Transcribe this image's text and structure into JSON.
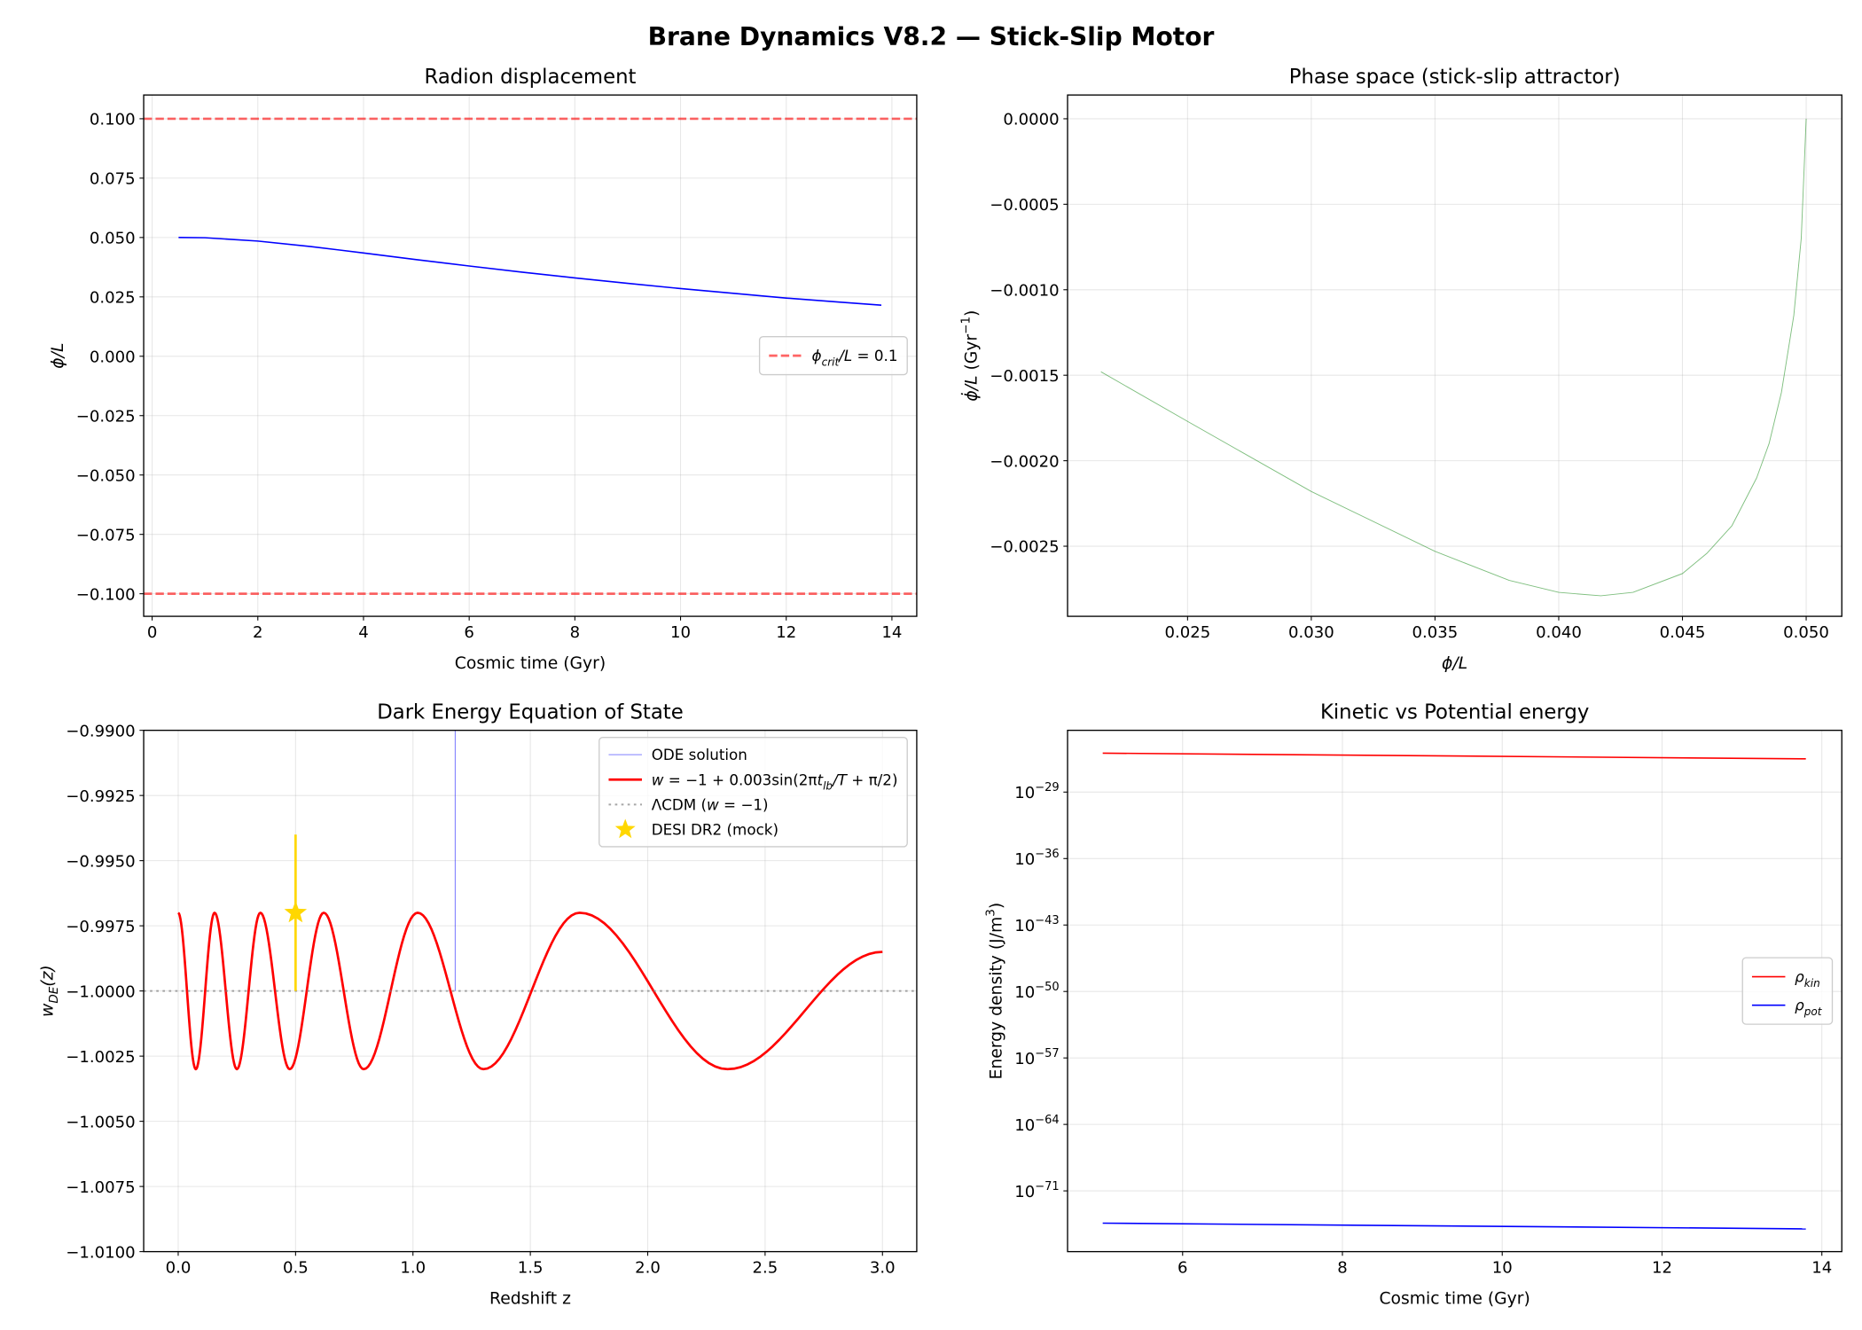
{
  "figure": {
    "title": "Brane Dynamics V8.2 — Stick-Slip Motor"
  },
  "chart_data": [
    {
      "type": "line",
      "title": "Radion displacement",
      "xlabel": [
        {
          "t": "Cosmic time (Gyr)"
        }
      ],
      "ylabel": [
        {
          "t": "ϕ/L",
          "i": 1
        }
      ],
      "xlim": [
        -0.16,
        14.47
      ],
      "ylim": [
        -0.1095,
        0.11
      ],
      "xticks": [
        0,
        2,
        4,
        6,
        8,
        10,
        12,
        14
      ],
      "xticklabels": [
        "0",
        "2",
        "4",
        "6",
        "8",
        "10",
        "12",
        "14"
      ],
      "yticks": [
        0.1,
        0.075,
        0.05,
        0.025,
        0,
        -0.025,
        -0.05,
        -0.075,
        -0.1
      ],
      "yticklabels": [
        "0.100",
        "0.075",
        "0.050",
        "0.025",
        "0.000",
        "−0.025",
        "−0.050",
        "−0.075",
        "−0.100"
      ],
      "grid": true,
      "legend": "center right",
      "series": [
        {
          "kind": "hline",
          "y": [
            0.1,
            -0.1
          ],
          "color": "#ff0000",
          "alpha": 0.6,
          "style": "dashed",
          "width": 2,
          "name": [
            {
              "t": "ϕ",
              "i": 1
            },
            {
              "t": "crit",
              "i": 1,
              "sub": 1
            },
            {
              "t": "/L",
              "i": 1
            },
            {
              "t": " = 0.1"
            }
          ]
        },
        {
          "kind": "line",
          "color": "#0000ff",
          "width": 1.2,
          "x": [
            0.5,
            1,
            2,
            3,
            4,
            5,
            6,
            7,
            8,
            9,
            10,
            11,
            12,
            13,
            13.8
          ],
          "y": [
            0.05,
            0.0499,
            0.0485,
            0.0462,
            0.0435,
            0.0407,
            0.038,
            0.0354,
            0.033,
            0.0307,
            0.0285,
            0.0265,
            0.0245,
            0.0228,
            0.0215
          ]
        }
      ]
    },
    {
      "type": "line",
      "title": "Phase space (stick-slip attractor)",
      "xlabel": [
        {
          "t": "ϕ/L",
          "i": 1
        }
      ],
      "ylabel": [
        {
          "t": "ϕ̇/L",
          "i": 1
        },
        {
          "t": " (Gyr"
        },
        {
          "t": "−1",
          "sup": 1
        },
        {
          "t": ")"
        }
      ],
      "xlim": [
        0.02015,
        0.05144
      ],
      "ylim": [
        -0.00291,
        0.000139
      ],
      "xticks": [
        0.025,
        0.03,
        0.035,
        0.04,
        0.045,
        0.05
      ],
      "xticklabels": [
        "0.025",
        "0.030",
        "0.035",
        "0.040",
        "0.045",
        "0.050"
      ],
      "yticks": [
        0,
        -0.0005,
        -0.001,
        -0.0015,
        -0.002,
        -0.0025
      ],
      "yticklabels": [
        "0.0000",
        "−0.0005",
        "−0.0010",
        "−0.0015",
        "−0.0020",
        "−0.0025"
      ],
      "grid": true,
      "series": [
        {
          "kind": "line",
          "color": "#008000",
          "alpha": 0.5,
          "width": 0.7,
          "x": [
            0.0215,
            0.025,
            0.03,
            0.035,
            0.038,
            0.04,
            0.0417,
            0.043,
            0.045,
            0.046,
            0.047,
            0.048,
            0.0485,
            0.049,
            0.0495,
            0.0498,
            0.05
          ],
          "y": [
            -0.00148,
            -0.00177,
            -0.00218,
            -0.00253,
            -0.0027,
            -0.00277,
            -0.00279,
            -0.00277,
            -0.00266,
            -0.00254,
            -0.00238,
            -0.0021,
            -0.0019,
            -0.0016,
            -0.00115,
            -0.0007,
            0
          ]
        }
      ]
    },
    {
      "type": "line",
      "title": "Dark Energy Equation of State",
      "xlabel": [
        {
          "t": "Redshift z"
        }
      ],
      "ylabel": [
        {
          "t": "w",
          "i": 1
        },
        {
          "t": "DE",
          "i": 1,
          "sub": 1
        },
        {
          "t": "(z)",
          "i": 1
        }
      ],
      "xlim": [
        -0.147,
        3.146
      ],
      "ylim": [
        -1.01,
        -0.99
      ],
      "xticks": [
        0,
        0.5,
        1,
        1.5,
        2,
        2.5,
        3
      ],
      "xticklabels": [
        "0.0",
        "0.5",
        "1.0",
        "1.5",
        "2.0",
        "2.5",
        "3.0"
      ],
      "yticks": [
        -0.99,
        -0.9925,
        -0.995,
        -0.9975,
        -1.0,
        -1.0025,
        -1.005,
        -1.0075,
        -1.01
      ],
      "yticklabels": [
        "−0.9900",
        "−0.9925",
        "−0.9950",
        "−0.9975",
        "−1.0000",
        "−1.0025",
        "−1.0050",
        "−1.0075",
        "−1.0100"
      ],
      "grid": true,
      "legend": "upper right",
      "series": [
        {
          "kind": "line",
          "color": "#0000ff",
          "alpha": 0.5,
          "width": 0.8,
          "name": [
            {
              "t": "ODE solution"
            }
          ],
          "x": [
            1.18,
            1.18
          ],
          "y": [
            -1.0,
            -0.985
          ]
        },
        {
          "kind": "sinusoid",
          "color": "#ff0000",
          "width": 2,
          "name": [
            {
              "t": "w",
              "i": 1
            },
            {
              "t": " = −1 + 0.003sin(2π"
            },
            {
              "t": "t",
              "i": 1
            },
            {
              "t": "lb",
              "i": 1,
              "sub": 1
            },
            {
              "t": "/",
              "i": 1
            },
            {
              "t": "T",
              "i": 1
            },
            {
              "t": " + π/2)"
            }
          ],
          "x": [
            0,
            0.075,
            0.155,
            0.25,
            0.35,
            0.475,
            0.62,
            0.79,
            1.02,
            1.3,
            1.71,
            2.34,
            3.0
          ],
          "y": [
            -0.997,
            -1.003,
            -0.997,
            -1.003,
            -0.997,
            -1.003,
            -0.997,
            -1.003,
            -0.997,
            -1.003,
            -0.997,
            -1.003,
            -0.9985
          ]
        },
        {
          "kind": "hline",
          "y": [
            -1.0
          ],
          "color": "#808080",
          "alpha": 0.7,
          "style": "dotted",
          "width": 1.5,
          "name": [
            {
              "t": "ΛCDM ("
            },
            {
              "t": "w",
              "i": 1
            },
            {
              "t": " = −1)"
            }
          ]
        },
        {
          "kind": "errorstar",
          "color": "#ffd700",
          "x": [
            0.5
          ],
          "y": [
            -0.997
          ],
          "yerr": [
            0.003
          ],
          "name": [
            {
              "t": "DESI DR2 (mock)"
            }
          ]
        }
      ]
    },
    {
      "type": "line",
      "title": "Kinetic vs Potential energy",
      "xlabel": [
        {
          "t": "Cosmic time (Gyr)"
        }
      ],
      "ylabel": [
        {
          "t": "Energy density (J/m"
        },
        {
          "t": "3",
          "sup": 1
        },
        {
          "t": ")"
        }
      ],
      "xlim": [
        4.56,
        14.25
      ],
      "yscale": "log",
      "ylim": [
        4e-78,
        3.2e-23
      ],
      "xticks": [
        6,
        8,
        10,
        12,
        14
      ],
      "xticklabels": [
        "6",
        "8",
        "10",
        "12",
        "14"
      ],
      "yticks": [
        1e-29,
        1e-36,
        1e-43,
        1e-50,
        1e-57,
        1e-64,
        1e-71
      ],
      "yticklabels": [
        [
          {
            "t": "10"
          },
          {
            "t": "−29",
            "sup": 1
          }
        ],
        [
          {
            "t": "10"
          },
          {
            "t": "−36",
            "sup": 1
          }
        ],
        [
          {
            "t": "10"
          },
          {
            "t": "−43",
            "sup": 1
          }
        ],
        [
          {
            "t": "10"
          },
          {
            "t": "−50",
            "sup": 1
          }
        ],
        [
          {
            "t": "10"
          },
          {
            "t": "−57",
            "sup": 1
          }
        ],
        [
          {
            "t": "10"
          },
          {
            "t": "−64",
            "sup": 1
          }
        ],
        [
          {
            "t": "10"
          },
          {
            "t": "−71",
            "sup": 1
          }
        ]
      ],
      "grid": true,
      "legend": "center right",
      "series": [
        {
          "kind": "line",
          "color": "#ff0000",
          "width": 1.2,
          "name": [
            {
              "t": "ρ",
              "i": 1
            },
            {
              "t": "kin",
              "i": 1,
              "sub": 1
            }
          ],
          "x": [
            5,
            13.8
          ],
          "y": [
            1.26e-25,
            3.16e-26
          ]
        },
        {
          "kind": "line",
          "color": "#0000ff",
          "width": 1.2,
          "name": [
            {
              "t": "ρ",
              "i": 1
            },
            {
              "t": "pot",
              "i": 1,
              "sub": 1
            }
          ],
          "x": [
            5,
            13.8
          ],
          "y": [
            3.98e-75,
            1e-75
          ]
        }
      ]
    }
  ]
}
